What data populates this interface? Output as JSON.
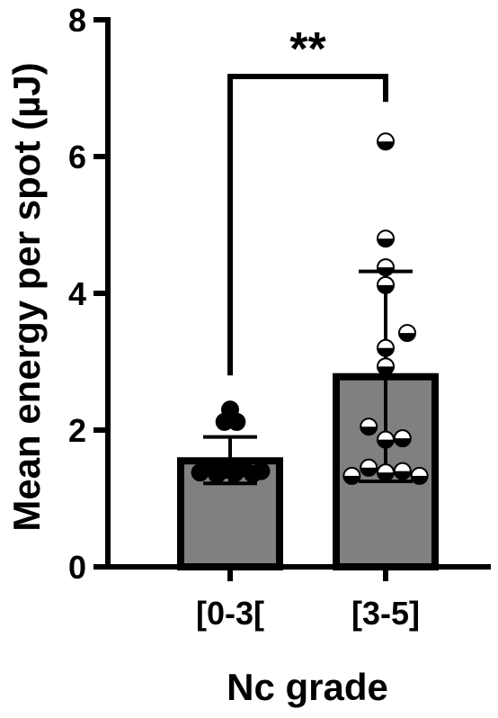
{
  "chart_data": {
    "type": "bar",
    "xlabel": "Nc grade",
    "ylabel": "Mean energy per spot (µJ)",
    "ylim": [
      0,
      8
    ],
    "yticks": [
      0,
      2,
      4,
      6,
      8
    ],
    "categories": [
      "[0-3[",
      "[3-5]"
    ],
    "values": [
      1.55,
      2.78
    ],
    "error": [
      {
        "lower": 1.22,
        "upper": 1.9
      },
      {
        "lower": 1.25,
        "upper": 4.32
      }
    ],
    "bar_color": "#808080",
    "points": [
      [
        {
          "x": -0.32,
          "y": 1.38,
          "fill": "black"
        },
        {
          "x": -0.22,
          "y": 1.45,
          "fill": "black"
        },
        {
          "x": -0.14,
          "y": 1.35,
          "fill": "black"
        },
        {
          "x": -0.05,
          "y": 1.42,
          "fill": "black"
        },
        {
          "x": 0.05,
          "y": 1.37,
          "fill": "black"
        },
        {
          "x": 0.14,
          "y": 1.44,
          "fill": "black"
        },
        {
          "x": 0.24,
          "y": 1.36,
          "fill": "black"
        },
        {
          "x": 0.33,
          "y": 1.4,
          "fill": "black"
        },
        {
          "x": 0.0,
          "y": 2.3,
          "fill": "black"
        },
        {
          "x": -0.06,
          "y": 2.12,
          "fill": "black"
        },
        {
          "x": 0.07,
          "y": 2.12,
          "fill": "black"
        }
      ],
      [
        {
          "x": 0.0,
          "y": 6.22,
          "fill": "half"
        },
        {
          "x": 0.0,
          "y": 4.8,
          "fill": "half"
        },
        {
          "x": 0.0,
          "y": 4.38,
          "fill": "half"
        },
        {
          "x": 0.0,
          "y": 4.12,
          "fill": "half"
        },
        {
          "x": 0.23,
          "y": 3.42,
          "fill": "half"
        },
        {
          "x": 0.0,
          "y": 3.2,
          "fill": "half"
        },
        {
          "x": 0.0,
          "y": 2.93,
          "fill": "half"
        },
        {
          "x": -0.18,
          "y": 2.05,
          "fill": "half"
        },
        {
          "x": 0.0,
          "y": 1.86,
          "fill": "half"
        },
        {
          "x": 0.18,
          "y": 1.88,
          "fill": "half"
        },
        {
          "x": -0.18,
          "y": 1.45,
          "fill": "half"
        },
        {
          "x": 0.0,
          "y": 1.38,
          "fill": "half"
        },
        {
          "x": 0.18,
          "y": 1.4,
          "fill": "half"
        },
        {
          "x": -0.36,
          "y": 1.33,
          "fill": "half"
        },
        {
          "x": 0.36,
          "y": 1.33,
          "fill": "half"
        }
      ]
    ],
    "significance": {
      "label": "**",
      "between": [
        "[0-3[",
        "[3-5]"
      ]
    }
  }
}
